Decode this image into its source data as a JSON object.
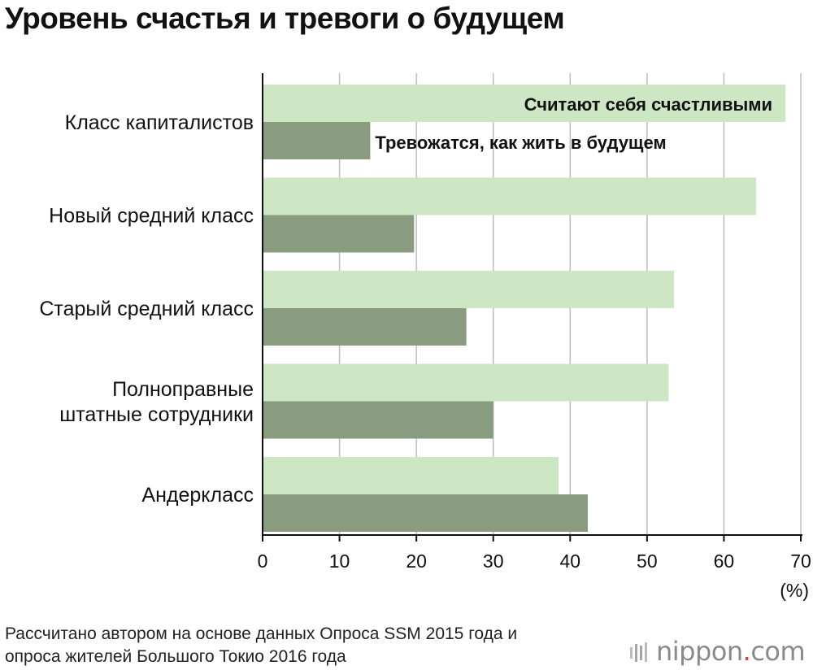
{
  "title": "Уровень счастья и тревоги о будущем",
  "colors": {
    "happy": "#cde6c3",
    "anxious": "#899c80",
    "grid": "#bdbdbd",
    "axis": "#111111",
    "logo_dot": "#e03a3a"
  },
  "chart_data": {
    "type": "bar",
    "orientation": "horizontal",
    "categories": [
      [
        "Класс капиталистов"
      ],
      [
        "Новый средний класс"
      ],
      [
        "Старый средний класс"
      ],
      [
        "Полноправные",
        "штатные сотрудники"
      ],
      [
        "Андеркласс"
      ]
    ],
    "series": [
      {
        "name": "Считают себя счастливыми",
        "values": [
          68,
          64.2,
          53.5,
          52.8,
          38.5
        ]
      },
      {
        "name": "Тревожатся, как жить в будущем",
        "values": [
          14,
          19.7,
          26.5,
          30,
          42.3
        ]
      }
    ],
    "xlim": [
      0,
      70
    ],
    "xticks": [
      0,
      10,
      20,
      30,
      40,
      50,
      60,
      70
    ],
    "xlabel": "(%)",
    "grid": true
  },
  "source": {
    "line1": "Рассчитано автором на основе данных Опроса SSM 2015 года и",
    "line2": "опроса жителей Большого Токио 2016 года"
  },
  "logo": {
    "word": "nippon",
    "dot": ".",
    "suffix": "com"
  }
}
